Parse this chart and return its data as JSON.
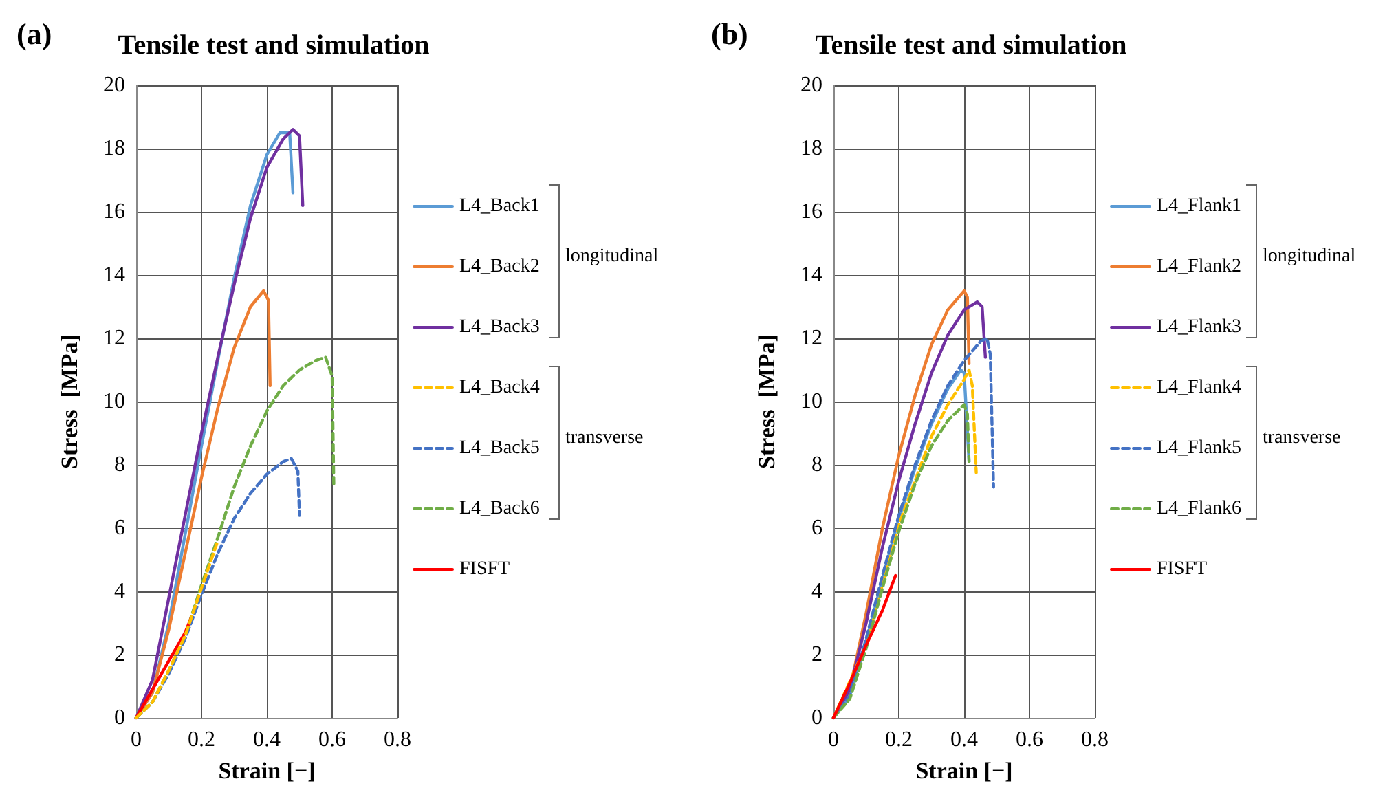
{
  "chart_data": [
    {
      "type": "line",
      "title": "Tensile test and simulation",
      "xlabel": "Strain [−]",
      "ylabel": "Stress  [MPa]",
      "annotations": [
        "(a)",
        "longitudinal",
        "transverse"
      ],
      "xlim": [
        0,
        0.8
      ],
      "xticks": [
        0,
        0.2,
        0.4,
        0.6,
        0.8
      ],
      "ylim": [
        0,
        20
      ],
      "yticks": [
        0,
        2,
        4,
        6,
        8,
        10,
        12,
        14,
        16,
        18,
        20
      ],
      "grid": true,
      "legend": "right",
      "marker": "none",
      "series": [
        {
          "name": "L4_Back1",
          "color": "#5b9bd5",
          "line_style": "solid",
          "x": [
            0,
            0.05,
            0.1,
            0.15,
            0.2,
            0.25,
            0.3,
            0.35,
            0.4,
            0.44,
            0.47,
            0.48
          ],
          "values": [
            0,
            0.8,
            3,
            5.8,
            8.6,
            11.3,
            13.9,
            16.2,
            17.8,
            18.5,
            18.5,
            16.6
          ]
        },
        {
          "name": "L4_Back2",
          "color": "#ed7d31",
          "line_style": "solid",
          "x": [
            0,
            0.05,
            0.1,
            0.15,
            0.2,
            0.25,
            0.3,
            0.35,
            0.39,
            0.405,
            0.41
          ],
          "values": [
            0,
            0.8,
            2.8,
            5.2,
            7.6,
            9.8,
            11.7,
            13,
            13.5,
            13.2,
            10.5
          ]
        },
        {
          "name": "L4_Back3",
          "color": "#7030a0",
          "line_style": "solid",
          "x": [
            0,
            0.05,
            0.1,
            0.15,
            0.2,
            0.25,
            0.3,
            0.35,
            0.4,
            0.45,
            0.48,
            0.5,
            0.51
          ],
          "values": [
            0,
            1.2,
            3.8,
            6.4,
            9,
            11.4,
            13.7,
            15.8,
            17.4,
            18.3,
            18.6,
            18.4,
            16.2
          ]
        },
        {
          "name": "L4_Back4",
          "color": "#ffc000",
          "line_style": "dashed",
          "x": [
            0,
            0.05,
            0.1,
            0.15,
            0.2,
            0.25
          ],
          "values": [
            0,
            0.5,
            1.5,
            2.6,
            4.1,
            5.6
          ]
        },
        {
          "name": "L4_Back5",
          "color": "#4472c4",
          "line_style": "dashed",
          "x": [
            0,
            0.05,
            0.1,
            0.15,
            0.2,
            0.25,
            0.3,
            0.35,
            0.4,
            0.45,
            0.475,
            0.495,
            0.5
          ],
          "values": [
            0,
            0.5,
            1.4,
            2.5,
            3.9,
            5.2,
            6.3,
            7.1,
            7.7,
            8.1,
            8.2,
            7.8,
            6.4
          ]
        },
        {
          "name": "L4_Back6",
          "color": "#70ad47",
          "line_style": "dashed",
          "x": [
            0,
            0.05,
            0.1,
            0.15,
            0.2,
            0.25,
            0.3,
            0.35,
            0.4,
            0.45,
            0.5,
            0.55,
            0.58,
            0.6,
            0.605
          ],
          "values": [
            0,
            0.5,
            1.5,
            2.6,
            4.2,
            5.7,
            7.3,
            8.6,
            9.7,
            10.5,
            11,
            11.3,
            11.4,
            10.8,
            7.4
          ]
        },
        {
          "name": "FISFT",
          "color": "#ff0000",
          "line_style": "solid",
          "x": [
            0,
            0.05,
            0.1,
            0.15,
            0.17
          ],
          "values": [
            0,
            0.9,
            1.8,
            2.7,
            3.2
          ]
        }
      ]
    },
    {
      "type": "line",
      "title": "Tensile test and simulation",
      "xlabel": "Strain [−]",
      "ylabel": "Stress  [MPa]",
      "annotations": [
        "(b)",
        "longitudinal",
        "transverse"
      ],
      "xlim": [
        0,
        0.8
      ],
      "xticks": [
        0,
        0.2,
        0.4,
        0.6,
        0.8
      ],
      "ylim": [
        0,
        20
      ],
      "yticks": [
        0,
        2,
        4,
        6,
        8,
        10,
        12,
        14,
        16,
        18,
        20
      ],
      "grid": true,
      "legend": "right",
      "marker": "none",
      "series": [
        {
          "name": "L4_Flank1",
          "color": "#5b9bd5",
          "line_style": "solid",
          "x": [
            0,
            0.05,
            0.1,
            0.15,
            0.2,
            0.25,
            0.3,
            0.35,
            0.39,
            0.4,
            0.415
          ],
          "values": [
            0,
            0.7,
            2.4,
            4.4,
            6.3,
            7.9,
            9.3,
            10.4,
            11,
            10.9,
            8.1
          ]
        },
        {
          "name": "L4_Flank2",
          "color": "#ed7d31",
          "line_style": "solid",
          "x": [
            0,
            0.05,
            0.1,
            0.15,
            0.2,
            0.25,
            0.3,
            0.35,
            0.4,
            0.41,
            0.415
          ],
          "values": [
            0,
            0.9,
            3.3,
            6,
            8.3,
            10.2,
            11.8,
            12.9,
            13.5,
            13.3,
            11.2
          ]
        },
        {
          "name": "L4_Flank3",
          "color": "#7030a0",
          "line_style": "solid",
          "x": [
            0,
            0.05,
            0.1,
            0.15,
            0.2,
            0.25,
            0.3,
            0.35,
            0.4,
            0.44,
            0.455,
            0.465
          ],
          "values": [
            0,
            0.9,
            3,
            5.4,
            7.5,
            9.3,
            10.9,
            12.1,
            12.9,
            13.15,
            13,
            11.4
          ]
        },
        {
          "name": "L4_Flank4",
          "color": "#ffc000",
          "line_style": "dashed",
          "x": [
            0,
            0.1,
            0.2,
            0.3,
            0.35,
            0.4,
            0.415,
            0.425,
            0.437
          ],
          "values": [
            0,
            2.3,
            6.1,
            8.9,
            9.9,
            10.7,
            11,
            10.5,
            7.75
          ]
        },
        {
          "name": "L4_Flank5",
          "color": "#4472c4",
          "line_style": "dashed",
          "x": [
            0,
            0.05,
            0.1,
            0.15,
            0.2,
            0.25,
            0.3,
            0.35,
            0.4,
            0.45,
            0.47,
            0.48,
            0.49
          ],
          "values": [
            0,
            0.7,
            2.5,
            4.5,
            6.4,
            8,
            9.4,
            10.5,
            11.3,
            11.9,
            12,
            11.5,
            7.3
          ]
        },
        {
          "name": "L4_Flank6",
          "color": "#70ad47",
          "line_style": "dashed",
          "x": [
            0,
            0.05,
            0.1,
            0.15,
            0.2,
            0.25,
            0.3,
            0.35,
            0.4,
            0.41,
            0.415
          ],
          "values": [
            0,
            0.6,
            2.2,
            4.1,
            5.9,
            7.4,
            8.6,
            9.4,
            9.9,
            9.6,
            8.1
          ]
        },
        {
          "name": "FISFT",
          "color": "#ff0000",
          "line_style": "solid",
          "x": [
            0,
            0.05,
            0.1,
            0.15,
            0.19
          ],
          "values": [
            0,
            1.1,
            2.3,
            3.4,
            4.5
          ]
        }
      ]
    }
  ]
}
